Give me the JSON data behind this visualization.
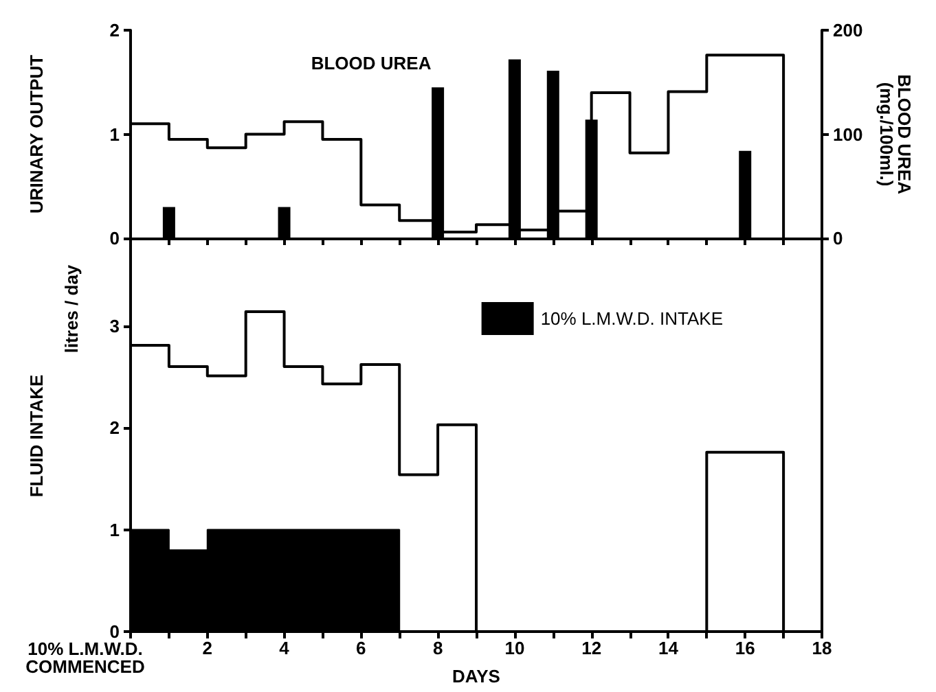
{
  "chart_data": [
    {
      "type": "step",
      "ylabel": "URINARY OUTPUT",
      "y2label": "BLOOD UREA\n(mg./100ml.)",
      "xlim": [
        0,
        18
      ],
      "xticks": [
        0,
        1,
        2,
        3,
        4,
        5,
        6,
        7,
        8,
        9,
        10,
        11,
        12,
        13,
        14,
        15,
        16,
        17,
        18
      ],
      "ylim": [
        0,
        2
      ],
      "yticks": [
        0,
        1,
        2
      ],
      "y2lim": [
        0,
        200
      ],
      "y2ticks": [
        0,
        100,
        200
      ],
      "tick_labels": "y",
      "marker": "none",
      "annotations": [
        "BLOOD UREA"
      ],
      "series": [
        {
          "color": "#000000",
          "x": [
            0,
            1,
            2,
            3,
            4,
            5,
            6,
            7,
            8,
            9,
            10,
            11,
            12,
            13,
            14,
            15,
            17
          ],
          "values": [
            1.1,
            0.95,
            0.87,
            1.0,
            1.12,
            0.95,
            0.32,
            0.17,
            0.06,
            0.13,
            0.08,
            0.26,
            1.4,
            0.82,
            1.41,
            1.76,
            0
          ]
        },
        {
          "type": "bar",
          "axis": "y2",
          "color": "#000000",
          "x": [
            1,
            4,
            8,
            10,
            11,
            12,
            16
          ],
          "values": [
            30,
            30,
            145,
            172,
            161,
            114,
            84
          ]
        }
      ]
    },
    {
      "type": "step",
      "ylabel": "FLUID INTAKE",
      "xlabel": "DAYS",
      "xlim": [
        0,
        18
      ],
      "xticks": [
        {
          "value": 0,
          "label": null
        },
        {
          "value": 1,
          "label": null
        },
        2,
        {
          "value": 3,
          "label": null
        },
        4,
        {
          "value": 5,
          "label": null
        },
        6,
        {
          "value": 7,
          "label": null
        },
        8,
        {
          "value": 9,
          "label": null
        },
        10,
        {
          "value": 11,
          "label": null
        },
        12,
        {
          "value": 13,
          "label": null
        },
        14,
        {
          "value": 15,
          "label": null
        },
        16,
        {
          "value": 17,
          "label": null
        },
        18
      ],
      "ylim": [
        0,
        3.84
      ],
      "yticks": [
        0,
        1,
        2,
        3
      ],
      "marker": "none",
      "legend": "top right",
      "annotations": [
        "litres / day",
        "10% L.M.W.D.\nCOMMENCED"
      ],
      "series": [
        {
          "color": "#000000",
          "x": [
            0,
            1,
            2,
            3,
            4,
            5,
            6,
            7,
            8,
            9,
            15,
            17
          ],
          "values": [
            2.81,
            2.6,
            2.51,
            3.14,
            2.6,
            2.43,
            2.62,
            1.54,
            2.03,
            0,
            1.76,
            0
          ]
        },
        {
          "type": "area",
          "name": "10% L.M.W.D. INTAKE",
          "color": "#000000",
          "x": [
            0,
            1,
            2,
            7
          ],
          "values": [
            1.0,
            0.8,
            1.0,
            0
          ]
        }
      ]
    }
  ]
}
